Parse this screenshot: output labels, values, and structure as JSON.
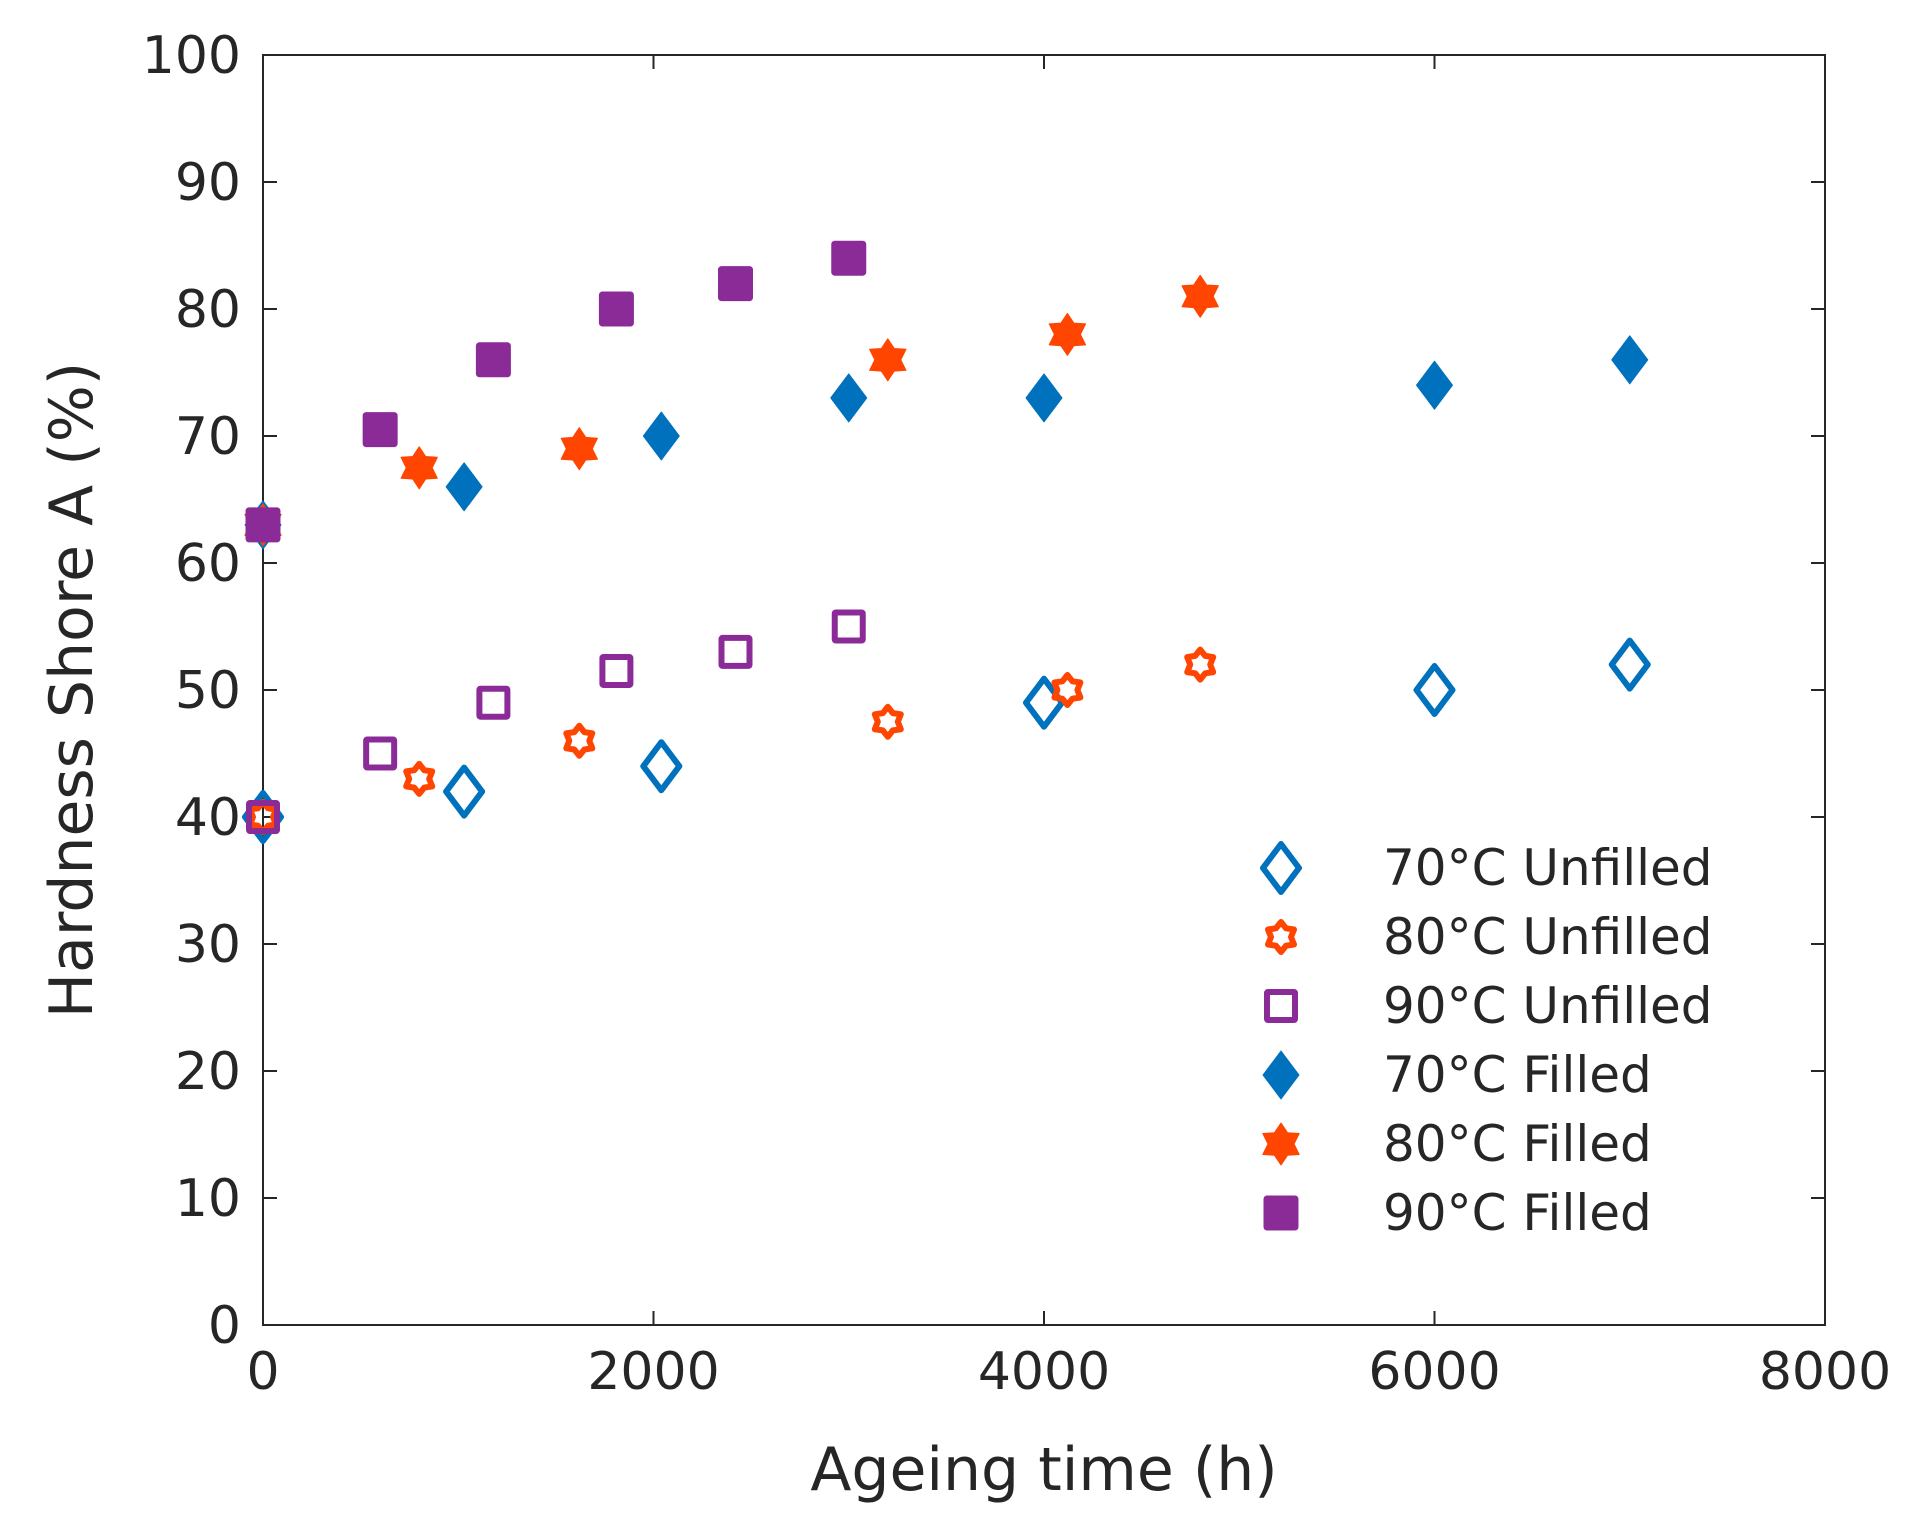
{
  "chart_data": {
    "type": "scatter",
    "title": "",
    "xlabel": "Ageing time (h)",
    "ylabel": "Hardness Shore A (%)",
    "xlim": [
      0,
      8000
    ],
    "ylim": [
      0,
      100
    ],
    "xticks": [
      0,
      2000,
      4000,
      6000,
      8000
    ],
    "yticks": [
      0,
      10,
      20,
      30,
      40,
      50,
      60,
      70,
      80,
      90,
      100
    ],
    "grid": false,
    "legend_position": "bottom-right",
    "series": [
      {
        "name": "70°C Unfilled",
        "marker": "diamond",
        "filled": false,
        "color": "#0072BD",
        "x": [
          0,
          1030,
          2040,
          4000,
          6000,
          7000
        ],
        "y": [
          40,
          42,
          44,
          49,
          50,
          52
        ]
      },
      {
        "name": "80°C Unfilled",
        "marker": "hexagram",
        "filled": false,
        "color": "#FF4500",
        "x": [
          0,
          800,
          1620,
          3200,
          4120,
          4800
        ],
        "y": [
          40,
          43,
          46,
          47.5,
          50,
          52
        ]
      },
      {
        "name": "90°C Unfilled",
        "marker": "square",
        "filled": false,
        "color": "#8B2B98",
        "x": [
          0,
          600,
          1180,
          1810,
          2420,
          3000
        ],
        "y": [
          40,
          45,
          49,
          51.5,
          53,
          55
        ]
      },
      {
        "name": "70°C Filled",
        "marker": "diamond",
        "filled": true,
        "color": "#0072BD",
        "x": [
          0,
          1030,
          2040,
          3000,
          4000,
          6000,
          7000
        ],
        "y": [
          63,
          66,
          70,
          73,
          73,
          74,
          76
        ]
      },
      {
        "name": "80°C Filled",
        "marker": "hexagram",
        "filled": true,
        "color": "#FF4500",
        "x": [
          0,
          800,
          1620,
          3200,
          4120,
          4800
        ],
        "y": [
          63,
          67.5,
          69,
          76,
          78,
          81
        ]
      },
      {
        "name": "90°C Filled",
        "marker": "square",
        "filled": true,
        "color": "#8B2B98",
        "x": [
          0,
          600,
          1180,
          1810,
          2420,
          3000
        ],
        "y": [
          63,
          70.5,
          76,
          80,
          82,
          84
        ]
      }
    ]
  }
}
